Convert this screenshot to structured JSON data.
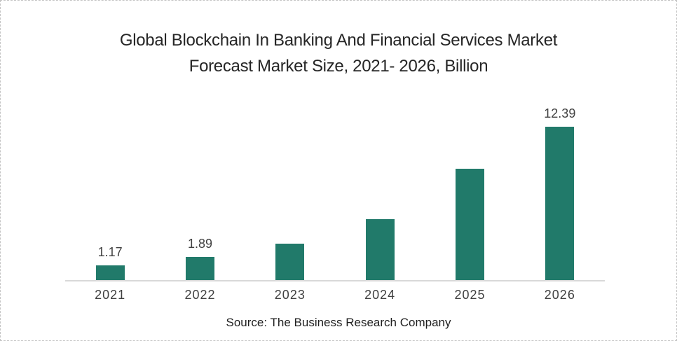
{
  "title": {
    "line1": "Global Blockchain In Banking And Financial Services Market",
    "line2": "Forecast Market Size, 2021- 2026, Billion"
  },
  "source_caption": "Source: The Business Research Company",
  "chart_data": {
    "type": "bar",
    "title": "Global Blockchain In Banking And Financial Services Market Forecast Market Size, 2021- 2026, Billion",
    "categories": [
      "2021",
      "2022",
      "2023",
      "2024",
      "2025",
      "2026"
    ],
    "values": [
      1.17,
      1.89,
      2.95,
      4.95,
      9.0,
      12.39
    ],
    "data_labels": [
      "1.17",
      "1.89",
      "",
      "",
      "",
      "12.39"
    ],
    "xlabel": "",
    "ylabel": "",
    "ylim": [
      0,
      12.5
    ],
    "grid": false,
    "legend_position": "none",
    "colors": {
      "bar": "#217a6a",
      "axis_line": "#d9d9d9",
      "title_text": "#262626",
      "label_text": "#404040",
      "source_text": "#1f1f1f",
      "canvas_border": "#c4c4c4"
    }
  }
}
